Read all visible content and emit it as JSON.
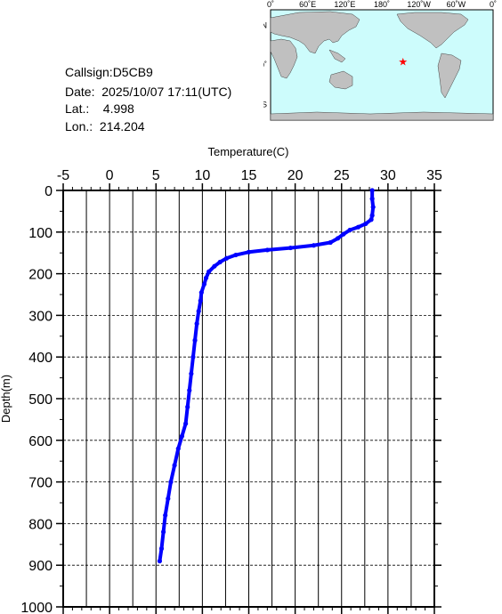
{
  "info": {
    "callsign": "Callsign:D5CB9",
    "date": "Date:  2025/10/07 17:11(UTC)",
    "lat": "Lat.:    4.998",
    "lon": "Lon.:  214.204"
  },
  "map": {
    "top_labels": [
      "0˚",
      "60˚E",
      "120˚E",
      "180˚",
      "120˚W",
      "60˚W",
      "0˚"
    ],
    "lat_labels": [
      "60˚N",
      "0˚",
      "60˚S"
    ],
    "ocean_color": "#cdfcfc",
    "land_color": "#c0c0c0",
    "marker_color": "#ff0000",
    "marker_icon": "star-icon",
    "marker_lat": 4.998,
    "marker_lon": 214.204
  },
  "chart_data": {
    "type": "line",
    "title": "",
    "xlabel": "Temperature(C)",
    "ylabel": "Depth(m)",
    "xlim": [
      -5,
      35
    ],
    "ylim": [
      1000,
      0
    ],
    "x_ticks": [
      "-5",
      "0",
      "5",
      "10",
      "15",
      "20",
      "25",
      "30",
      "35"
    ],
    "y_ticks": [
      "0",
      "100",
      "200",
      "300",
      "400",
      "500",
      "600",
      "700",
      "800",
      "900",
      "1000"
    ],
    "grid": true,
    "line_color": "#0000ff",
    "series": [
      {
        "name": "",
        "points": [
          [
            28.3,
            0
          ],
          [
            28.3,
            20
          ],
          [
            28.4,
            40
          ],
          [
            28.3,
            60
          ],
          [
            28.2,
            70
          ],
          [
            27.6,
            80
          ],
          [
            26.8,
            88
          ],
          [
            25.9,
            95
          ],
          [
            25.2,
            105
          ],
          [
            24.6,
            115
          ],
          [
            23.8,
            125
          ],
          [
            22.0,
            132
          ],
          [
            19.5,
            138
          ],
          [
            17.0,
            143
          ],
          [
            15.0,
            148
          ],
          [
            13.6,
            155
          ],
          [
            12.6,
            163
          ],
          [
            11.9,
            172
          ],
          [
            11.3,
            182
          ],
          [
            10.7,
            195
          ],
          [
            10.4,
            210
          ],
          [
            10.2,
            225
          ],
          [
            9.9,
            245
          ],
          [
            9.8,
            265
          ],
          [
            9.6,
            290
          ],
          [
            9.4,
            320
          ],
          [
            9.2,
            360
          ],
          [
            9.0,
            400
          ],
          [
            8.8,
            440
          ],
          [
            8.6,
            480
          ],
          [
            8.4,
            520
          ],
          [
            8.2,
            560
          ],
          [
            7.8,
            590
          ],
          [
            7.4,
            620
          ],
          [
            7.0,
            660
          ],
          [
            6.6,
            700
          ],
          [
            6.3,
            740
          ],
          [
            6.0,
            780
          ],
          [
            5.8,
            820
          ],
          [
            5.6,
            860
          ],
          [
            5.4,
            890
          ]
        ]
      }
    ]
  }
}
